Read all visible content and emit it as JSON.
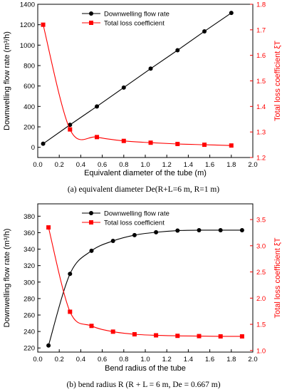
{
  "captions": [
    "(a) equivalent diameter  De(R+L=6 m, R=1 m)",
    "(b) bend radius R (R + L = 6 m,  De = 0.667  m)"
  ],
  "colors": {
    "flow": "#000000",
    "loss": "#ff0000",
    "axis": "#000000"
  },
  "chart_data": [
    {
      "type": "line",
      "xlabel": "Equivalent diameter of the tube (m)",
      "ylabel": "Downwelling flow rate (m³/h)",
      "y2label": "Total loss coefficient ξT",
      "xlim": [
        0.0,
        2.0
      ],
      "xticks": [
        0.0,
        0.2,
        0.4,
        0.6,
        0.8,
        1.0,
        1.2,
        1.4,
        1.6,
        1.8,
        2.0
      ],
      "ylim": [
        -100,
        1400
      ],
      "yticks": [
        0,
        200,
        400,
        600,
        800,
        1000,
        1200,
        1400
      ],
      "y2lim": [
        1.2,
        1.8
      ],
      "y2ticks": [
        1.2,
        1.3,
        1.4,
        1.5,
        1.6,
        1.7,
        1.8
      ],
      "grid": false,
      "legend_position": "top-center",
      "series": [
        {
          "name": "Downwelling flow rate",
          "axis": "left",
          "marker": "circle",
          "x": [
            0.05,
            0.3,
            0.55,
            0.8,
            1.05,
            1.3,
            1.55,
            1.8
          ],
          "y": [
            35,
            220,
            400,
            585,
            770,
            950,
            1135,
            1315
          ]
        },
        {
          "name": "Total loss coefficient",
          "axis": "right",
          "marker": "square",
          "x": [
            0.05,
            0.3,
            0.55,
            0.8,
            1.05,
            1.3,
            1.55,
            1.8
          ],
          "y": [
            1.72,
            1.31,
            1.28,
            1.265,
            1.258,
            1.253,
            1.25,
            1.247
          ]
        }
      ]
    },
    {
      "type": "line",
      "xlabel": "Bend radius of the tube",
      "ylabel": "Downwelling flow rate (m³/h)",
      "y2label": "Total loss coefficient ξT",
      "xlim": [
        0.0,
        2.0
      ],
      "xticks": [
        0.0,
        0.2,
        0.4,
        0.6,
        0.8,
        1.0,
        1.2,
        1.4,
        1.6,
        1.8,
        2.0
      ],
      "ylim": [
        215,
        395
      ],
      "yticks": [
        220,
        240,
        260,
        280,
        300,
        320,
        340,
        360,
        380
      ],
      "y2lim": [
        0.97,
        3.8
      ],
      "y2ticks": [
        1.0,
        1.5,
        2.0,
        2.5,
        3.0,
        3.5
      ],
      "grid": false,
      "legend_position": "top-center",
      "series": [
        {
          "name": "Downwelling flow rate",
          "axis": "left",
          "marker": "circle",
          "x": [
            0.1,
            0.3,
            0.5,
            0.7,
            0.9,
            1.1,
            1.3,
            1.5,
            1.7,
            1.9
          ],
          "y": [
            223,
            310,
            338,
            350,
            357,
            360.5,
            362.5,
            363,
            363,
            363
          ]
        },
        {
          "name": "Total loss coefficient",
          "axis": "right",
          "marker": "square",
          "x": [
            0.1,
            0.3,
            0.5,
            0.7,
            0.9,
            1.1,
            1.3,
            1.5,
            1.7,
            1.9
          ],
          "y": [
            3.35,
            1.74,
            1.47,
            1.36,
            1.31,
            1.29,
            1.28,
            1.275,
            1.27,
            1.27
          ]
        }
      ]
    }
  ]
}
